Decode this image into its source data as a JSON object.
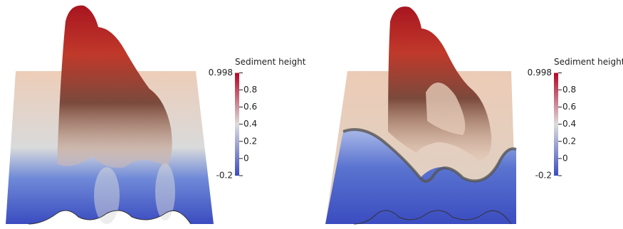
{
  "chart_data": [
    {
      "type": "surface",
      "title": "Sediment height",
      "clim": [
        -0.2,
        0.998
      ],
      "cticks": [
        0.998,
        0.8,
        0.6,
        0.4,
        0.2,
        0,
        -0.2
      ],
      "colors": [
        "#3b4cc0",
        "#dddddd",
        "#b40426"
      ]
    },
    {
      "type": "surface",
      "title": "Sediment height",
      "clim": [
        -0.2,
        0.998
      ],
      "cticks": [
        0.998,
        0.8,
        0.6,
        0.4,
        0.2,
        0,
        -0.2
      ],
      "colors": [
        "#3b4cc0",
        "#dddddd",
        "#b40426"
      ]
    }
  ]
}
